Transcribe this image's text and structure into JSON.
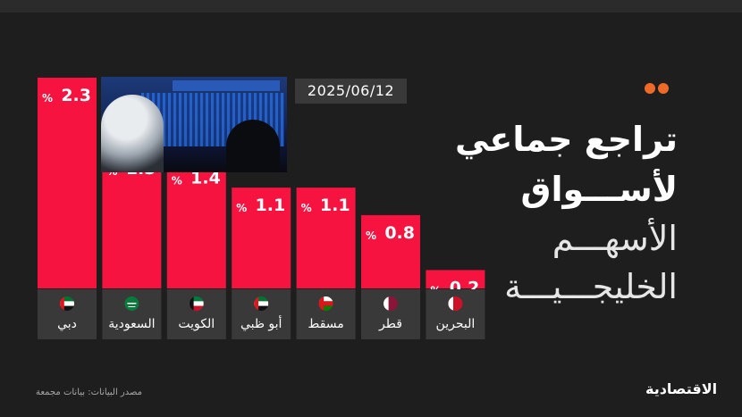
{
  "date": "2025/06/12",
  "title": {
    "line1": "تراجع جماعي",
    "line2": "لأســـواق",
    "line3": "الأسهـــم",
    "line4": "الخليجـــيـــة"
  },
  "source": "مصدر البيانات: بيانات مجمعة",
  "logo": "الاقتصادية",
  "colors": {
    "bar": "#f7133f",
    "label_bg": "#3a393a",
    "accent": "#ef6a28",
    "background": "#1f1e1f"
  },
  "chart_data": {
    "type": "bar",
    "categories": [
      "دبي",
      "السعودية",
      "الكويت",
      "أبو ظبي",
      "مسقط",
      "قطر",
      "البحرين"
    ],
    "values": [
      2.3,
      1.5,
      1.4,
      1.1,
      1.1,
      0.8,
      0.2
    ],
    "value_labels": [
      "2.3",
      "1.5",
      "1.4",
      "1.1",
      "1.1",
      "0.8",
      "0.2"
    ],
    "unit_label": "%",
    "flags": [
      "uae-flag-icon",
      "saudi-flag-icon",
      "kuwait-flag-icon",
      "uae-flag-icon",
      "oman-flag-icon",
      "qatar-flag-icon",
      "bahrain-flag-icon"
    ],
    "ylim": [
      0,
      2.3
    ],
    "grid": false
  }
}
